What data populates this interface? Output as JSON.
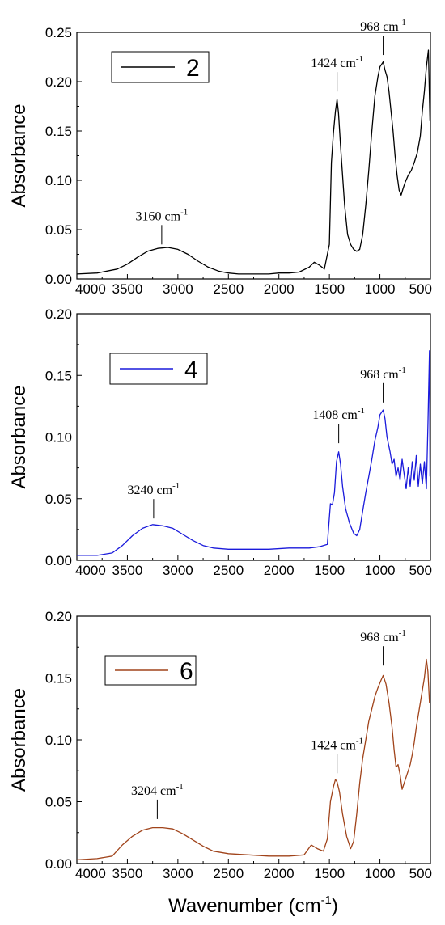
{
  "chart_data": [
    {
      "type": "line",
      "legend": "2",
      "color": "#000000",
      "xlim": [
        4000,
        500
      ],
      "ylim": [
        0,
        0.25
      ],
      "yticks": [
        "0.00",
        "0.05",
        "0.10",
        "0.15",
        "0.20",
        "0.25"
      ],
      "xticks": [
        "4000",
        "3500",
        "3000",
        "2500",
        "2000",
        "1500",
        "1000",
        "500"
      ],
      "ylabel": "Absorbance",
      "xlabel": "",
      "annotations": [
        {
          "text": "3160 cm",
          "sup": "-1",
          "x": 3160,
          "y": 0.035
        },
        {
          "text": "1424 cm",
          "sup": "-1",
          "x": 1424,
          "y": 0.19
        },
        {
          "text": "968 cm",
          "sup": "-1",
          "x": 968,
          "y": 0.227
        }
      ],
      "x": [
        4000,
        3800,
        3600,
        3500,
        3400,
        3300,
        3200,
        3100,
        3000,
        2900,
        2800,
        2700,
        2600,
        2500,
        2400,
        2300,
        2200,
        2100,
        2000,
        1900,
        1800,
        1700,
        1650,
        1600,
        1550,
        1500,
        1480,
        1460,
        1440,
        1424,
        1410,
        1390,
        1370,
        1350,
        1320,
        1290,
        1260,
        1230,
        1200,
        1170,
        1140,
        1110,
        1080,
        1050,
        1020,
        1000,
        968,
        950,
        930,
        910,
        890,
        870,
        850,
        830,
        810,
        790,
        770,
        750,
        720,
        690,
        660,
        630,
        600,
        580,
        560,
        540,
        520,
        505
      ],
      "y": [
        0.005,
        0.006,
        0.01,
        0.015,
        0.022,
        0.028,
        0.031,
        0.032,
        0.03,
        0.025,
        0.018,
        0.012,
        0.008,
        0.006,
        0.005,
        0.005,
        0.005,
        0.005,
        0.006,
        0.006,
        0.007,
        0.012,
        0.017,
        0.014,
        0.01,
        0.035,
        0.118,
        0.148,
        0.17,
        0.182,
        0.168,
        0.135,
        0.105,
        0.075,
        0.045,
        0.035,
        0.03,
        0.028,
        0.03,
        0.045,
        0.075,
        0.11,
        0.15,
        0.185,
        0.205,
        0.215,
        0.22,
        0.212,
        0.205,
        0.19,
        0.17,
        0.15,
        0.125,
        0.105,
        0.09,
        0.085,
        0.092,
        0.098,
        0.105,
        0.11,
        0.118,
        0.128,
        0.145,
        0.17,
        0.19,
        0.215,
        0.232,
        0.16
      ]
    },
    {
      "type": "line",
      "legend": "4",
      "color": "#1a1adb",
      "xlim": [
        4000,
        500
      ],
      "ylim": [
        0,
        0.2
      ],
      "yticks": [
        "0.00",
        "0.05",
        "0.10",
        "0.15",
        "0.20"
      ],
      "xticks": [
        "4000",
        "3500",
        "3000",
        "2500",
        "2000",
        "1500",
        "1000",
        "500"
      ],
      "ylabel": "Absorbance",
      "xlabel": "",
      "annotations": [
        {
          "text": "3240 cm",
          "sup": "-1",
          "x": 3240,
          "y": 0.034
        },
        {
          "text": "1408 cm",
          "sup": "-1",
          "x": 1408,
          "y": 0.095
        },
        {
          "text": "968 cm",
          "sup": "-1",
          "x": 968,
          "y": 0.128
        }
      ],
      "x": [
        4000,
        3800,
        3650,
        3550,
        3450,
        3350,
        3250,
        3150,
        3050,
        2950,
        2850,
        2750,
        2650,
        2500,
        2300,
        2100,
        1900,
        1700,
        1600,
        1520,
        1490,
        1470,
        1450,
        1430,
        1408,
        1390,
        1370,
        1340,
        1300,
        1260,
        1230,
        1200,
        1170,
        1140,
        1110,
        1080,
        1050,
        1020,
        1000,
        968,
        950,
        930,
        900,
        880,
        860,
        840,
        820,
        800,
        780,
        760,
        740,
        720,
        700,
        680,
        660,
        640,
        620,
        600,
        580,
        560,
        540,
        525,
        510,
        505
      ],
      "y": [
        0.004,
        0.004,
        0.006,
        0.012,
        0.02,
        0.026,
        0.029,
        0.028,
        0.026,
        0.021,
        0.016,
        0.012,
        0.01,
        0.009,
        0.009,
        0.009,
        0.01,
        0.01,
        0.011,
        0.013,
        0.046,
        0.045,
        0.055,
        0.08,
        0.088,
        0.078,
        0.06,
        0.042,
        0.03,
        0.022,
        0.02,
        0.025,
        0.04,
        0.055,
        0.068,
        0.082,
        0.097,
        0.108,
        0.118,
        0.122,
        0.115,
        0.1,
        0.088,
        0.078,
        0.082,
        0.068,
        0.075,
        0.065,
        0.082,
        0.07,
        0.058,
        0.075,
        0.06,
        0.08,
        0.065,
        0.085,
        0.06,
        0.078,
        0.062,
        0.08,
        0.058,
        0.11,
        0.17,
        0.068
      ]
    },
    {
      "type": "line",
      "legend": "6",
      "color": "#a0431a",
      "xlim": [
        4000,
        500
      ],
      "ylim": [
        0,
        0.2
      ],
      "yticks": [
        "0.00",
        "0.05",
        "0.10",
        "0.15",
        "0.20"
      ],
      "xticks": [
        "4000",
        "3500",
        "3000",
        "2500",
        "2000",
        "1500",
        "1000",
        "500"
      ],
      "ylabel": "Absorbance",
      "xlabel": "Wavenumber (cm",
      "xlabel_sup": "-1",
      "xlabel_end": ")",
      "annotations": [
        {
          "text": "3204 cm",
          "sup": "-1",
          "x": 3204,
          "y": 0.036
        },
        {
          "text": "1424 cm",
          "sup": "-1",
          "x": 1424,
          "y": 0.073
        },
        {
          "text": "968 cm",
          "sup": "-1",
          "x": 968,
          "y": 0.16
        }
      ],
      "x": [
        4000,
        3800,
        3650,
        3550,
        3450,
        3350,
        3250,
        3150,
        3050,
        2950,
        2850,
        2750,
        2650,
        2500,
        2300,
        2100,
        1900,
        1750,
        1680,
        1620,
        1560,
        1520,
        1490,
        1460,
        1440,
        1424,
        1400,
        1370,
        1330,
        1290,
        1260,
        1230,
        1200,
        1170,
        1140,
        1110,
        1080,
        1050,
        1020,
        990,
        968,
        940,
        910,
        880,
        860,
        840,
        820,
        800,
        780,
        760,
        740,
        720,
        700,
        680,
        660,
        640,
        620,
        600,
        580,
        560,
        540,
        525,
        510
      ],
      "y": [
        0.003,
        0.004,
        0.006,
        0.015,
        0.022,
        0.027,
        0.029,
        0.029,
        0.028,
        0.024,
        0.019,
        0.014,
        0.01,
        0.008,
        0.007,
        0.006,
        0.006,
        0.007,
        0.015,
        0.012,
        0.01,
        0.02,
        0.05,
        0.062,
        0.068,
        0.066,
        0.058,
        0.04,
        0.022,
        0.012,
        0.018,
        0.04,
        0.065,
        0.085,
        0.1,
        0.115,
        0.125,
        0.135,
        0.142,
        0.148,
        0.152,
        0.145,
        0.13,
        0.11,
        0.092,
        0.078,
        0.08,
        0.072,
        0.06,
        0.065,
        0.07,
        0.075,
        0.08,
        0.088,
        0.098,
        0.11,
        0.12,
        0.13,
        0.14,
        0.15,
        0.165,
        0.155,
        0.13
      ]
    }
  ]
}
